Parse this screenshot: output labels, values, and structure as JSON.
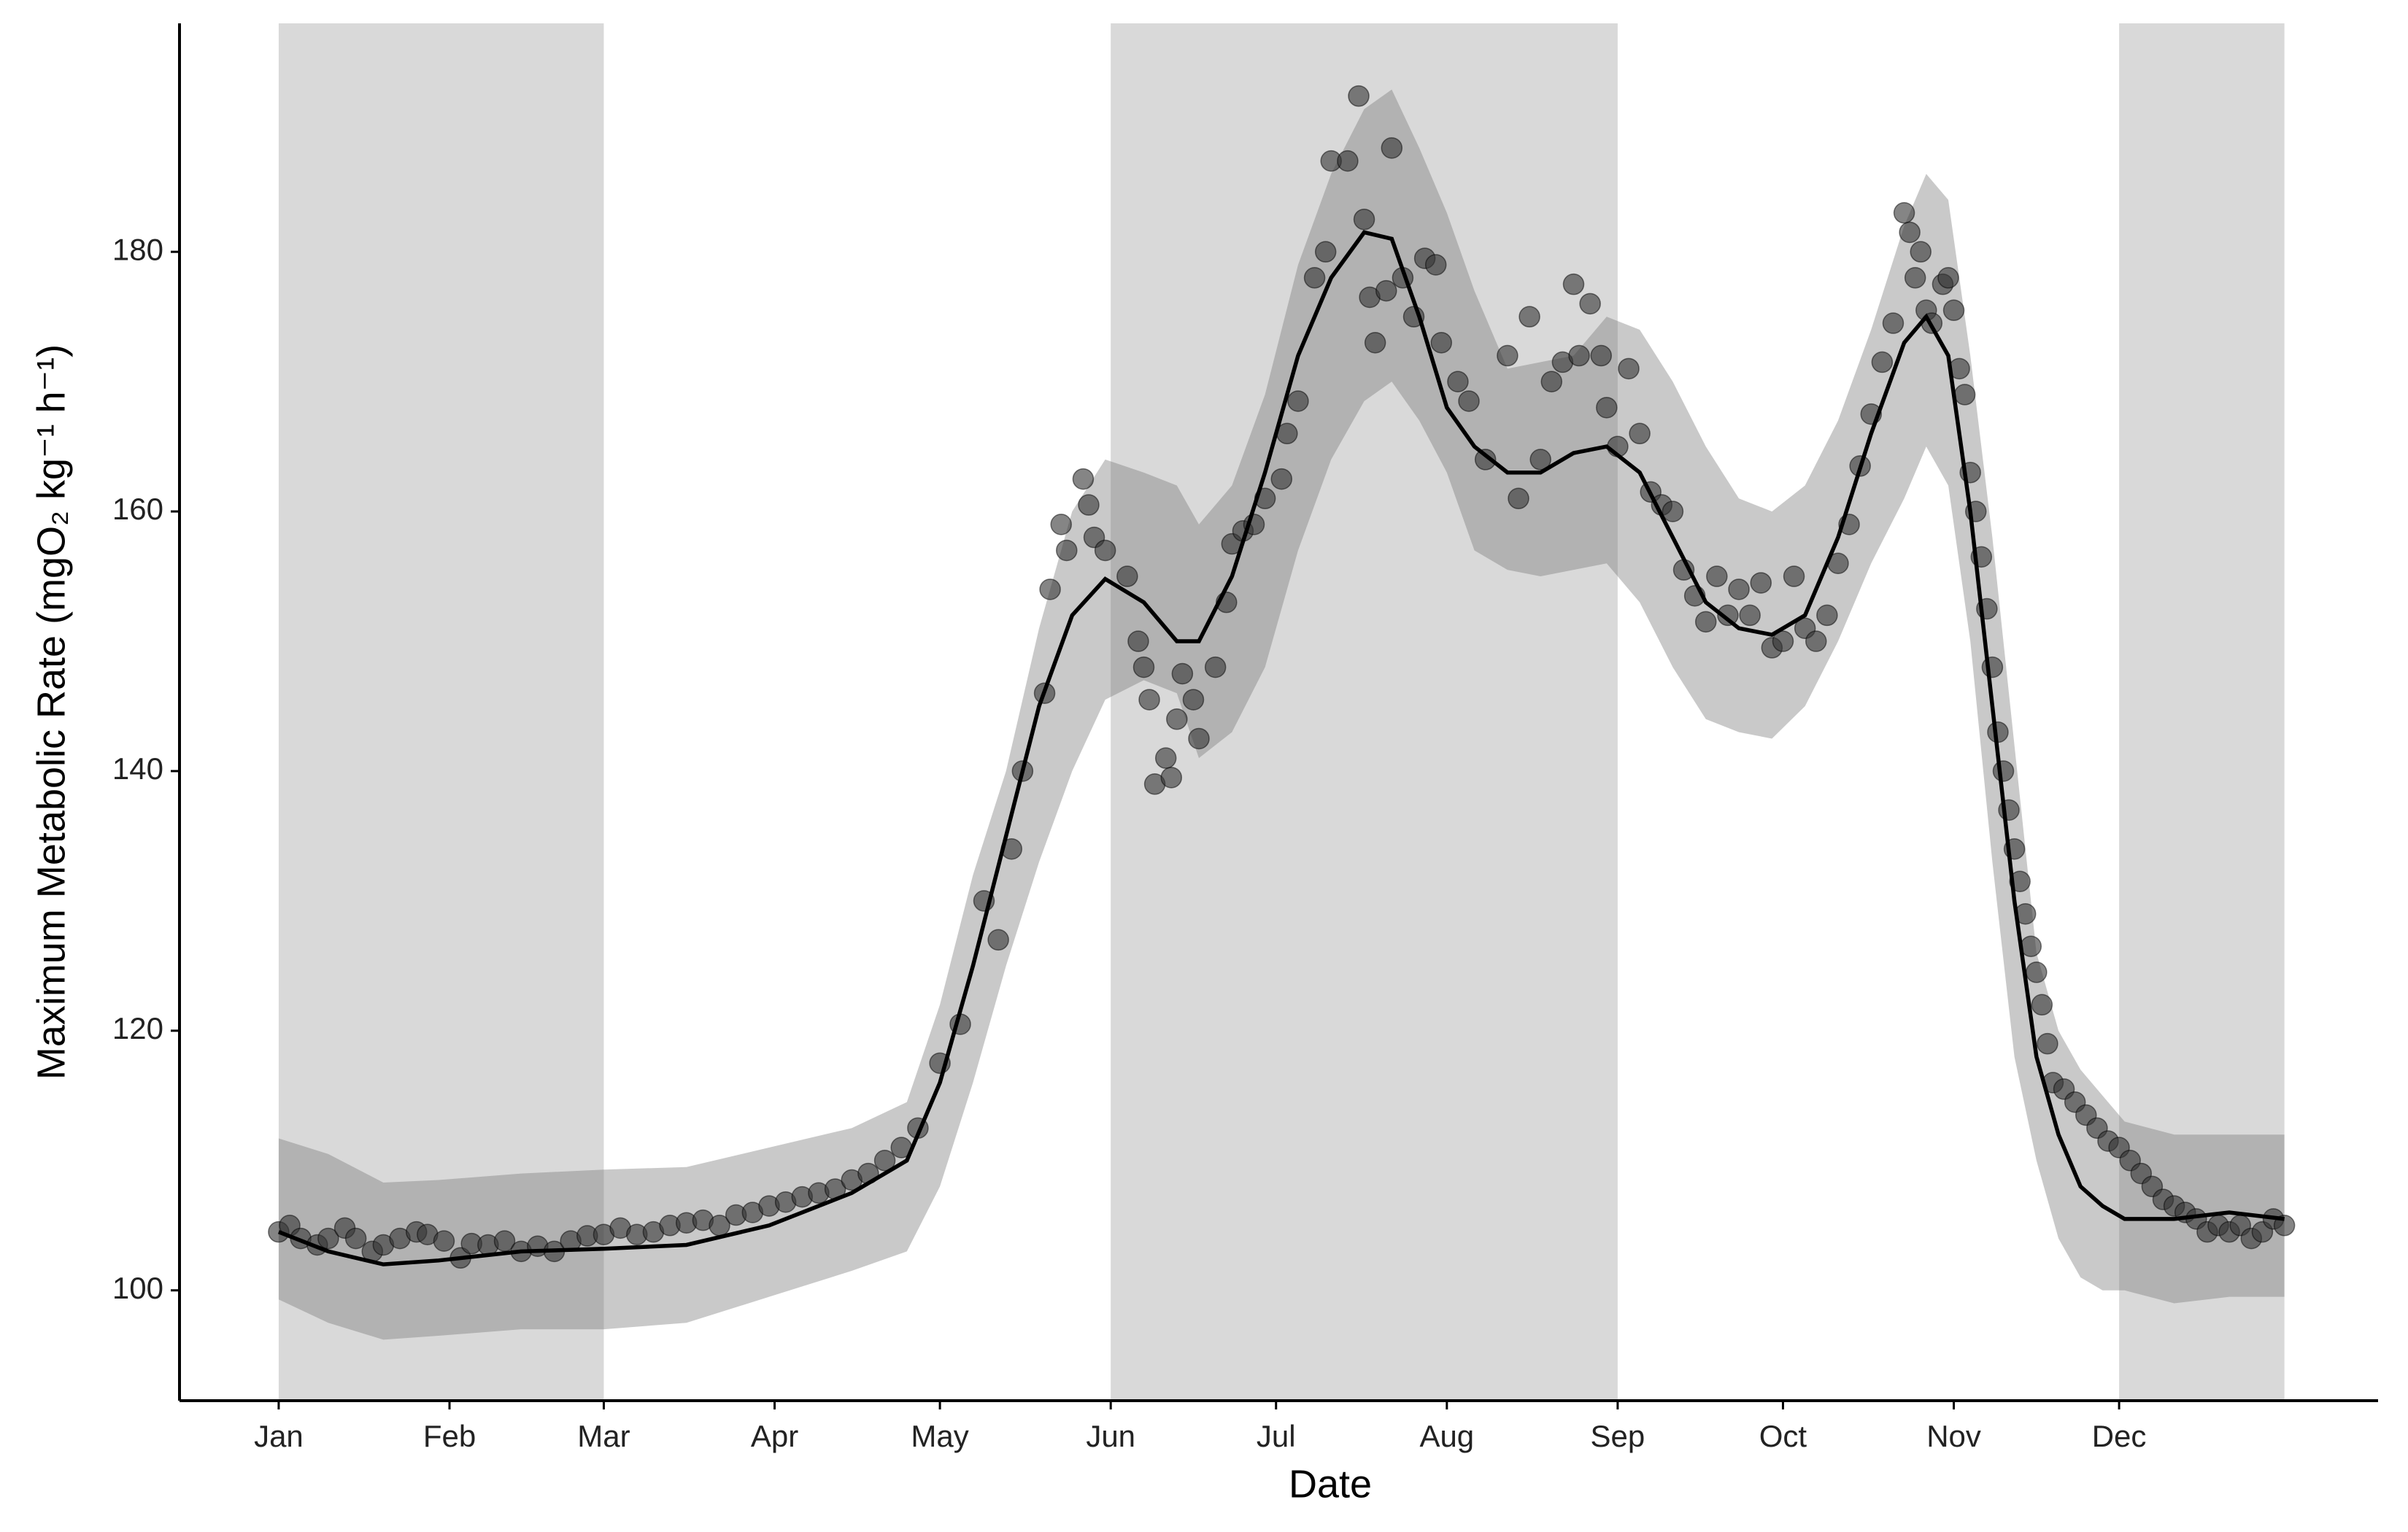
{
  "chart_data": {
    "type": "scatter",
    "x_label": "Date",
    "y_label": "Maximum Metabolic Rate (mgO₂ kg⁻¹ h⁻¹)",
    "xlim": [
      -17,
      382
    ],
    "ylim": [
      91.5,
      197.6
    ],
    "xticks": [
      {
        "value": 1,
        "label": "Jan"
      },
      {
        "value": 32,
        "label": "Feb"
      },
      {
        "value": 60,
        "label": "Mar"
      },
      {
        "value": 91,
        "label": "Apr"
      },
      {
        "value": 121,
        "label": "May"
      },
      {
        "value": 152,
        "label": "Jun"
      },
      {
        "value": 182,
        "label": "Jul"
      },
      {
        "value": 213,
        "label": "Aug"
      },
      {
        "value": 244,
        "label": "Sep"
      },
      {
        "value": 274,
        "label": "Oct"
      },
      {
        "value": 305,
        "label": "Nov"
      },
      {
        "value": 335,
        "label": "Dec"
      }
    ],
    "yticks": [
      100,
      120,
      140,
      160,
      180
    ],
    "shaded_periods": [
      [
        1,
        60
      ],
      [
        152,
        244
      ],
      [
        335,
        365
      ]
    ],
    "shade_color": "#d9d9d9",
    "points": {
      "color": "#333333",
      "x": [
        1,
        3,
        5,
        8,
        10,
        13,
        15,
        18,
        20,
        23,
        26,
        28,
        31,
        34,
        36,
        39,
        42,
        45,
        48,
        51,
        54,
        57,
        60,
        63,
        66,
        69,
        72,
        75,
        78,
        81,
        84,
        87,
        90,
        93,
        96,
        99,
        102,
        105,
        108,
        111,
        114,
        117,
        121,
        124.7,
        129,
        131.6,
        134,
        136,
        140,
        141,
        143,
        144,
        147,
        148,
        149,
        151,
        155,
        157,
        158,
        159,
        160,
        162,
        163,
        164,
        165,
        167,
        168,
        171,
        173,
        174,
        176,
        178,
        180,
        183,
        184,
        186,
        189,
        191,
        192,
        195,
        197,
        198,
        199,
        200,
        202,
        203,
        205,
        207,
        209,
        211,
        212,
        215,
        217,
        220,
        224,
        226,
        228,
        230,
        232,
        234,
        236,
        237,
        239,
        241,
        242,
        244,
        246,
        248,
        250,
        252,
        254,
        256,
        258,
        260,
        262,
        264,
        266,
        268,
        270,
        272,
        274,
        276,
        278,
        280,
        282,
        284,
        286,
        288,
        290,
        292,
        294,
        296,
        297,
        298,
        299,
        300,
        301,
        303,
        304,
        305,
        306,
        307,
        308,
        309,
        310,
        311,
        312,
        313,
        314,
        315,
        316,
        317,
        318,
        319,
        320,
        321,
        322,
        323,
        325,
        327,
        329,
        331,
        333,
        335,
        337,
        339,
        341,
        343,
        345,
        347,
        349,
        351,
        353,
        355,
        357,
        359,
        361,
        363,
        365
      ],
      "values": [
        104.5,
        105,
        104,
        103.5,
        104,
        104.8,
        104,
        103,
        103.5,
        104,
        104.5,
        104.3,
        103.8,
        102.5,
        103.6,
        103.5,
        103.8,
        103,
        103.4,
        103,
        103.8,
        104.2,
        104.3,
        104.8,
        104.3,
        104.5,
        105,
        105.2,
        105.4,
        105,
        105.8,
        106,
        106.5,
        106.8,
        107.2,
        107.5,
        107.8,
        108.5,
        109,
        110,
        111,
        112.5,
        117.5,
        120.5,
        130,
        127,
        134,
        140,
        146,
        154,
        159,
        157,
        162.5,
        160.5,
        158,
        157,
        155,
        150,
        148,
        145.5,
        139,
        141,
        139.5,
        144,
        147.5,
        145.5,
        142.5,
        148,
        153,
        157.5,
        158.5,
        159,
        161,
        162.5,
        166,
        168.5,
        178,
        180,
        187,
        187,
        192,
        182.5,
        176.5,
        173,
        177,
        188,
        178,
        175,
        179.5,
        179,
        173,
        170,
        168.5,
        164,
        172,
        161,
        175,
        164,
        170,
        171.5,
        177.5,
        172,
        176,
        172,
        168,
        165,
        171,
        166,
        161.5,
        160.5,
        160,
        155.5,
        153.5,
        151.5,
        155,
        152,
        154,
        152,
        154.5,
        149.5,
        150,
        155,
        151,
        150,
        152,
        156,
        159,
        163.5,
        167.5,
        171.5,
        174.5,
        183,
        181.5,
        178,
        180,
        175.5,
        174.5,
        177.5,
        178,
        175.5,
        171,
        169,
        163,
        160,
        156.5,
        152.5,
        148,
        143,
        140,
        137,
        134,
        131.5,
        129,
        126.5,
        124.5,
        122,
        119,
        116,
        115.5,
        114.5,
        113.5,
        112.5,
        111.5,
        111,
        110,
        109,
        108,
        107,
        106.5,
        106,
        105.5,
        104.5,
        105,
        104.5,
        105,
        104,
        104.5,
        105.5,
        105
      ]
    },
    "fit": {
      "color": "#000000",
      "band_color": "#777777",
      "x": [
        1,
        10,
        20,
        30,
        45,
        60,
        75,
        90,
        105,
        115,
        121,
        127,
        133,
        139,
        145,
        151,
        158,
        164,
        168,
        174,
        180,
        186,
        192,
        198,
        203,
        208,
        213,
        218,
        224,
        230,
        236,
        242,
        248,
        254,
        260,
        266,
        272,
        278,
        284,
        290,
        296,
        300,
        304,
        308,
        312,
        316,
        320,
        324,
        328,
        332,
        336,
        345,
        355,
        365
      ],
      "values": [
        104.5,
        103,
        102,
        102.3,
        103,
        103.2,
        103.5,
        105,
        107.5,
        110,
        116,
        125,
        135,
        145,
        152,
        154.8,
        153,
        150,
        150,
        155,
        163,
        172,
        178,
        181.5,
        181,
        175,
        168,
        165,
        163,
        163,
        164.5,
        165,
        163,
        158,
        153,
        151,
        150.5,
        152,
        158,
        166,
        173,
        175,
        172,
        160,
        145,
        130,
        118,
        112,
        108,
        106.5,
        105.5,
        105.5,
        106,
        105.5
      ],
      "lower": [
        99.3,
        97.5,
        96.2,
        96.5,
        97,
        97,
        97.5,
        99.5,
        101.5,
        103,
        108,
        116,
        125,
        133,
        140,
        145.5,
        147,
        146,
        141,
        143,
        148,
        157,
        164,
        168.5,
        170,
        167,
        163,
        157,
        155.5,
        155,
        155.5,
        156,
        153,
        148,
        144,
        143,
        142.5,
        145,
        150,
        156,
        161,
        165,
        162,
        150,
        133,
        118,
        110,
        104,
        101,
        100,
        100,
        99,
        99.5,
        99.5
      ],
      "upper": [
        111.7,
        110.5,
        108.3,
        108.5,
        109,
        109.3,
        109.5,
        111,
        112.5,
        114.5,
        122,
        132,
        140,
        151,
        160,
        164,
        163,
        162,
        159,
        162,
        169,
        179,
        186,
        191,
        192.5,
        188,
        183,
        177,
        171,
        171.5,
        172,
        175,
        174,
        170,
        165,
        161,
        160,
        162,
        167,
        174,
        182,
        186,
        184,
        172,
        158,
        142,
        126,
        120,
        117,
        115,
        113,
        112,
        112,
        112
      ]
    }
  }
}
